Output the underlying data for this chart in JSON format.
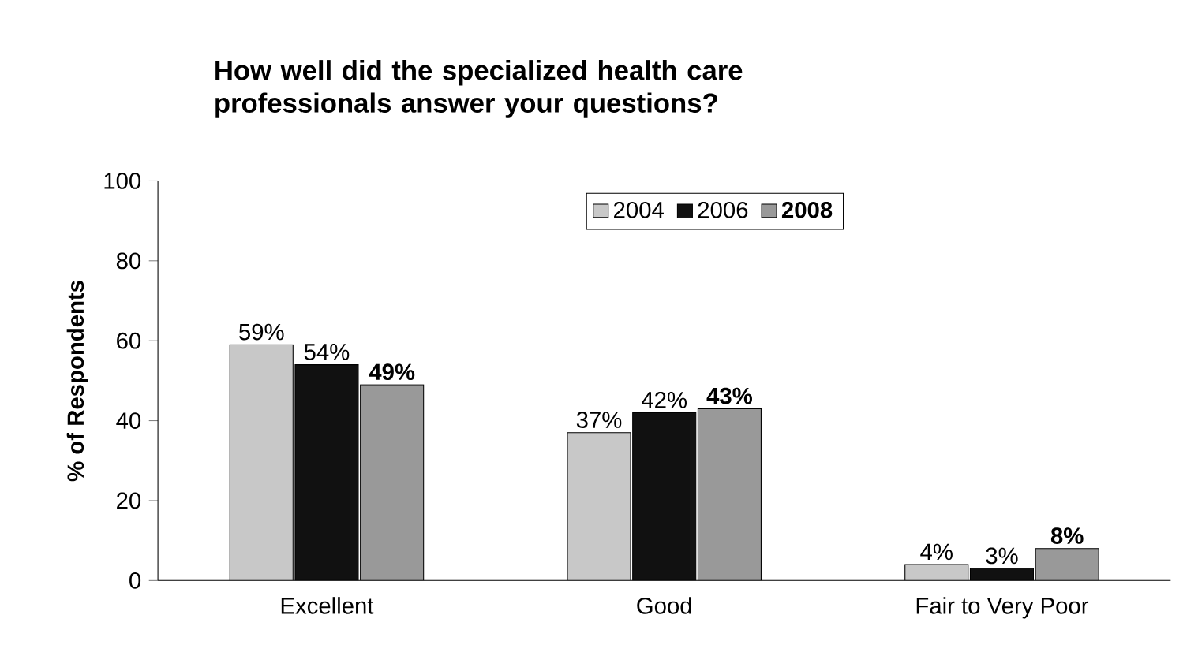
{
  "chart_data": {
    "type": "bar",
    "title": "How well did the specialized health care professionals answer your questions?",
    "ylabel": "% of Respondents",
    "categories": [
      "Excellent",
      "Good",
      "Fair to Very Poor"
    ],
    "series": [
      {
        "name": "2004",
        "color": "#c8c8c8",
        "values": [
          59,
          37,
          4
        ],
        "value_labels": [
          "59%",
          "37%",
          "4%"
        ]
      },
      {
        "name": "2006",
        "color": "#111111",
        "values": [
          54,
          42,
          3
        ],
        "value_labels": [
          "54%",
          "42%",
          "3%"
        ]
      },
      {
        "name": "**2008**",
        "color": "#999999",
        "values": [
          49,
          43,
          8
        ],
        "value_labels": [
          "**49%**",
          "**43%**",
          "**8%**"
        ]
      }
    ],
    "ylim": [
      0,
      100
    ],
    "yticks": [
      0,
      20,
      40,
      60,
      80,
      100
    ],
    "grid": false,
    "legend": "top"
  }
}
